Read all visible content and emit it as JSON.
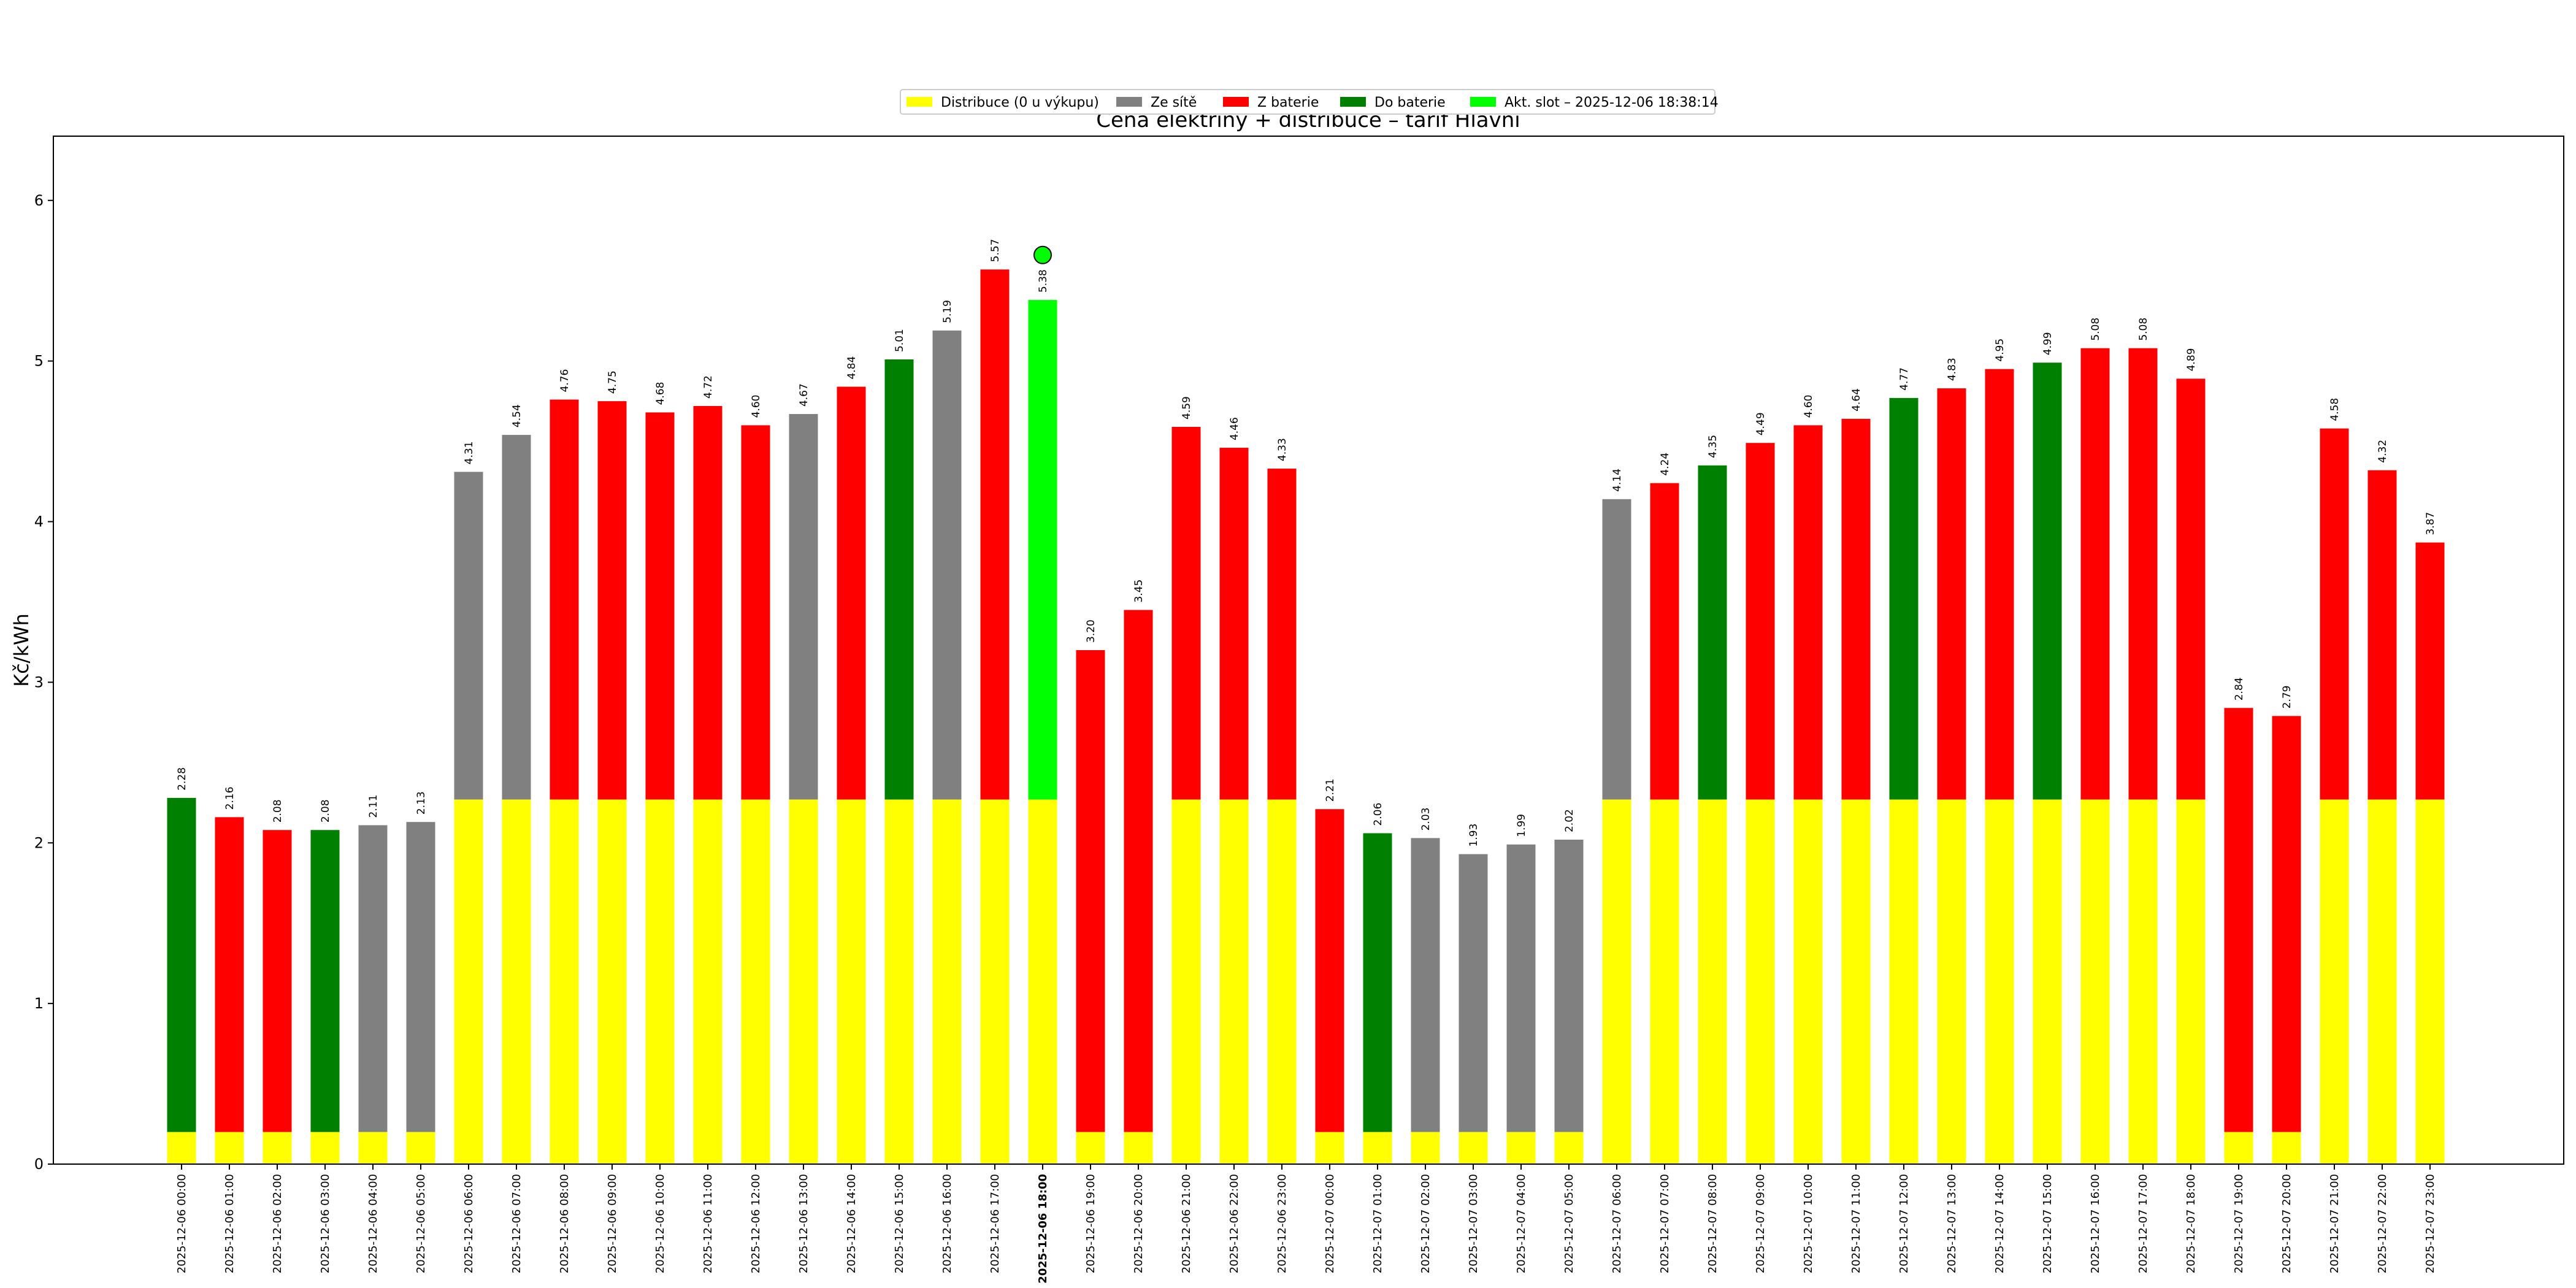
{
  "chart_data": {
    "type": "bar",
    "title": "Cena elektřiny + distribuce – tarif Hlavní",
    "ylabel": "Kč/kWh",
    "xlabel": "",
    "ylim": [
      0,
      6.4
    ],
    "yticks": [
      0,
      1,
      2,
      3,
      4,
      5,
      6
    ],
    "grid": false,
    "legend_position": "top-center",
    "legend": [
      {
        "label": "Distribuce (0 u výkupu)",
        "color": "#ffff00"
      },
      {
        "label": "Ze sítě",
        "color": "#808080"
      },
      {
        "label": "Z baterie",
        "color": "#ff0000"
      },
      {
        "label": "Do baterie",
        "color": "#008000"
      },
      {
        "label": "Akt. slot – 2025-12-06 18:38:14",
        "color": "#00ff00"
      }
    ],
    "colors": {
      "distribution": "#ffff00",
      "grid": "#808080",
      "battery_out": "#ff0000",
      "battery_in": "#008000",
      "current": "#00ff00"
    },
    "current_index": 18,
    "categories": [
      "2025-12-06 00:00",
      "2025-12-06 01:00",
      "2025-12-06 02:00",
      "2025-12-06 03:00",
      "2025-12-06 04:00",
      "2025-12-06 05:00",
      "2025-12-06 06:00",
      "2025-12-06 07:00",
      "2025-12-06 08:00",
      "2025-12-06 09:00",
      "2025-12-06 10:00",
      "2025-12-06 11:00",
      "2025-12-06 12:00",
      "2025-12-06 13:00",
      "2025-12-06 14:00",
      "2025-12-06 15:00",
      "2025-12-06 16:00",
      "2025-12-06 17:00",
      "2025-12-06 18:00",
      "2025-12-06 19:00",
      "2025-12-06 20:00",
      "2025-12-06 21:00",
      "2025-12-06 22:00",
      "2025-12-06 23:00",
      "2025-12-07 00:00",
      "2025-12-07 01:00",
      "2025-12-07 02:00",
      "2025-12-07 03:00",
      "2025-12-07 04:00",
      "2025-12-07 05:00",
      "2025-12-07 06:00",
      "2025-12-07 07:00",
      "2025-12-07 08:00",
      "2025-12-07 09:00",
      "2025-12-07 10:00",
      "2025-12-07 11:00",
      "2025-12-07 12:00",
      "2025-12-07 13:00",
      "2025-12-07 14:00",
      "2025-12-07 15:00",
      "2025-12-07 16:00",
      "2025-12-07 17:00",
      "2025-12-07 18:00",
      "2025-12-07 19:00",
      "2025-12-07 20:00",
      "2025-12-07 21:00",
      "2025-12-07 22:00",
      "2025-12-07 23:00"
    ],
    "distribution": [
      0.2,
      0.2,
      0.2,
      0.2,
      0.2,
      0.2,
      2.27,
      2.27,
      2.27,
      2.27,
      2.27,
      2.27,
      2.27,
      2.27,
      2.27,
      2.27,
      2.27,
      2.27,
      2.27,
      0.2,
      0.2,
      2.27,
      2.27,
      2.27,
      0.2,
      0.2,
      0.2,
      0.2,
      0.2,
      0.2,
      2.27,
      2.27,
      2.27,
      2.27,
      2.27,
      2.27,
      2.27,
      2.27,
      2.27,
      2.27,
      2.27,
      2.27,
      2.27,
      0.2,
      0.2,
      2.27,
      2.27,
      2.27
    ],
    "totals": [
      2.28,
      2.16,
      2.08,
      2.08,
      2.11,
      2.13,
      4.31,
      4.54,
      4.76,
      4.75,
      4.68,
      4.72,
      4.6,
      4.67,
      4.84,
      5.01,
      5.19,
      5.57,
      5.38,
      3.2,
      3.45,
      4.59,
      4.46,
      4.33,
      2.21,
      2.06,
      2.03,
      1.93,
      1.99,
      2.02,
      4.14,
      4.24,
      4.35,
      4.49,
      4.6,
      4.64,
      4.77,
      4.83,
      4.95,
      4.99,
      5.08,
      5.08,
      4.89,
      2.84,
      2.79,
      4.58,
      4.32,
      3.87
    ],
    "labels": [
      "2.28",
      "2.16",
      "2.08",
      "2.08",
      "2.11",
      "2.13",
      "4.31",
      "4.54",
      "4.76",
      "4.75",
      "4.68",
      "4.72",
      "4.60",
      "4.67",
      "4.84",
      "5.01",
      "5.19",
      "5.57",
      "5.38",
      "3.20",
      "3.45",
      "4.59",
      "4.46",
      "4.33",
      "2.21",
      "2.06",
      "2.03",
      "1.93",
      "1.99",
      "2.02",
      "4.14",
      "4.24",
      "4.35",
      "4.49",
      "4.60",
      "4.64",
      "4.77",
      "4.83",
      "4.95",
      "4.99",
      "5.08",
      "5.08",
      "4.89",
      "2.84",
      "2.79",
      "4.58",
      "4.32",
      "3.87"
    ],
    "source": [
      "battery_in",
      "battery_out",
      "battery_out",
      "battery_in",
      "grid",
      "grid",
      "grid",
      "grid",
      "battery_out",
      "battery_out",
      "battery_out",
      "battery_out",
      "battery_out",
      "grid",
      "battery_out",
      "battery_in",
      "grid",
      "battery_out",
      "current",
      "battery_out",
      "battery_out",
      "battery_out",
      "battery_out",
      "battery_out",
      "battery_out",
      "battery_in",
      "grid",
      "grid",
      "grid",
      "grid",
      "grid",
      "battery_out",
      "battery_in",
      "battery_out",
      "battery_out",
      "battery_out",
      "battery_in",
      "battery_out",
      "battery_out",
      "battery_in",
      "battery_out",
      "battery_out",
      "battery_out",
      "battery_out",
      "battery_out",
      "battery_out",
      "battery_out",
      "battery_out"
    ]
  }
}
